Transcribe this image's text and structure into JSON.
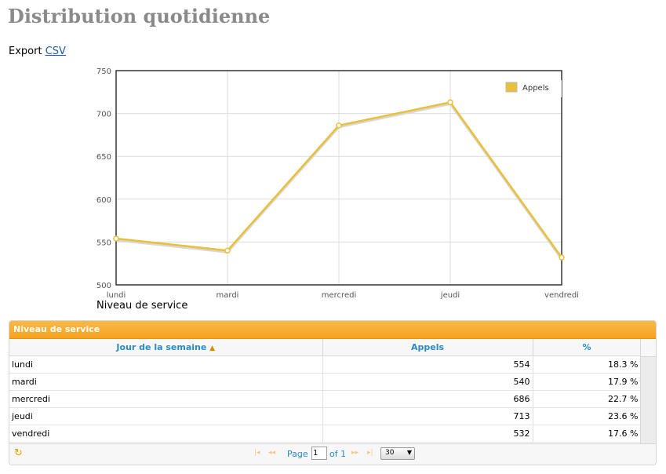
{
  "page": {
    "title": "Distribution quotidienne"
  },
  "export": {
    "label": "Export",
    "link": "CSV"
  },
  "chart_data": {
    "type": "line",
    "categories": [
      "lundi",
      "mardi",
      "mercredi",
      "jeudi",
      "vendredi"
    ],
    "series": [
      {
        "name": "Appels",
        "values": [
          554,
          540,
          686,
          713,
          532
        ]
      }
    ],
    "ylim": [
      500,
      750
    ],
    "yticks": [
      500,
      550,
      600,
      650,
      700,
      750
    ],
    "grid": true,
    "legend": "top-right",
    "color": "#e8c03a",
    "caption": "Niveau de service"
  },
  "grid": {
    "title": "Niveau de service",
    "columns": [
      "Jour de la semaine",
      "Appels",
      "%"
    ],
    "rows": [
      [
        "lundi",
        "554",
        "18.3 %"
      ],
      [
        "mardi",
        "540",
        "17.9 %"
      ],
      [
        "mercredi",
        "686",
        "22.7 %"
      ],
      [
        "jeudi",
        "713",
        "23.6 %"
      ],
      [
        "vendredi",
        "532",
        "17.6 %"
      ]
    ],
    "pager": {
      "page_label": "Page",
      "page_value": "1",
      "of_label": "of 1",
      "per_page": "30"
    }
  },
  "icons": {
    "refresh": "refresh-icon",
    "first": "first-page-icon",
    "prev": "prev-page-icon",
    "next": "next-page-icon",
    "last": "last-page-icon",
    "sort": "sort-icon"
  }
}
